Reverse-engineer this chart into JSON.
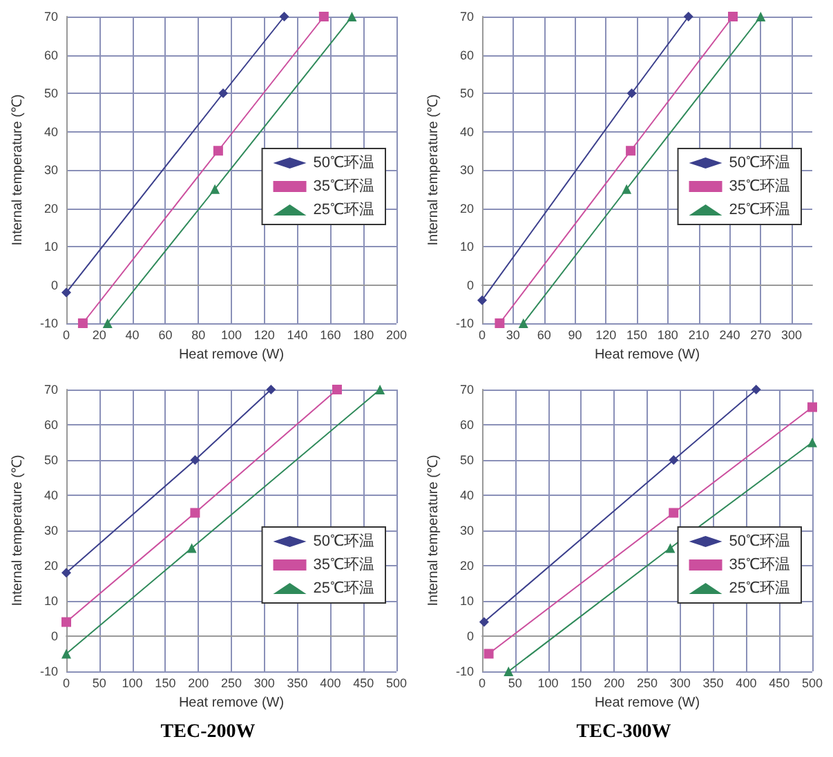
{
  "chart_data": [
    {
      "type": "line",
      "xlabel": "Heat remove (W)",
      "ylabel": "Internal temperature (℃)",
      "xlim": [
        0,
        200
      ],
      "xticks": [
        0,
        20,
        40,
        60,
        80,
        100,
        120,
        140,
        160,
        180,
        200
      ],
      "ylim": [
        -10,
        70
      ],
      "yticks": [
        -10,
        0,
        10,
        20,
        30,
        40,
        50,
        60,
        70
      ],
      "grid": true,
      "legend": "right",
      "series": [
        {
          "name": "50℃环温",
          "color": "#3b3f8c",
          "marker": "diamond",
          "x": [
            0,
            95,
            132
          ],
          "values": [
            -2,
            50,
            70
          ]
        },
        {
          "name": "35℃环温",
          "color": "#cc4f9e",
          "marker": "square",
          "x": [
            10,
            92,
            156
          ],
          "values": [
            -10,
            35,
            70
          ]
        },
        {
          "name": "25℃环温",
          "color": "#2f8a5a",
          "marker": "triangle",
          "x": [
            25,
            90,
            173
          ],
          "values": [
            -10,
            25,
            70
          ]
        }
      ]
    },
    {
      "type": "line",
      "xlabel": "Heat remove (W)",
      "ylabel": "Internal temperature (℃)",
      "xlim": [
        0,
        320
      ],
      "xticks": [
        0,
        30,
        60,
        90,
        120,
        150,
        180,
        210,
        240,
        270,
        300
      ],
      "ylim": [
        -10,
        70
      ],
      "yticks": [
        -10,
        0,
        10,
        20,
        30,
        40,
        50,
        60,
        70
      ],
      "grid": true,
      "legend": "right",
      "series": [
        {
          "name": "50℃环温",
          "color": "#3b3f8c",
          "marker": "diamond",
          "x": [
            0,
            145,
            200
          ],
          "values": [
            -4,
            50,
            70
          ]
        },
        {
          "name": "35℃环温",
          "color": "#cc4f9e",
          "marker": "square",
          "x": [
            17,
            144,
            243
          ],
          "values": [
            -10,
            35,
            70
          ]
        },
        {
          "name": "25℃环温",
          "color": "#2f8a5a",
          "marker": "triangle",
          "x": [
            40,
            140,
            270
          ],
          "values": [
            -10,
            25,
            70
          ]
        }
      ]
    },
    {
      "type": "line",
      "title": "TEC-200W",
      "xlabel": "Heat remove (W)",
      "ylabel": "Internal temperature (℃)",
      "xlim": [
        0,
        500
      ],
      "xticks": [
        0,
        50,
        100,
        150,
        200,
        250,
        300,
        350,
        400,
        450,
        500
      ],
      "ylim": [
        -10,
        70
      ],
      "yticks": [
        -10,
        0,
        10,
        20,
        30,
        40,
        50,
        60,
        70
      ],
      "grid": true,
      "legend": "right",
      "series": [
        {
          "name": "50℃环温",
          "color": "#3b3f8c",
          "marker": "diamond",
          "x": [
            0,
            195,
            310
          ],
          "values": [
            18,
            50,
            70
          ]
        },
        {
          "name": "35℃环温",
          "color": "#cc4f9e",
          "marker": "square",
          "x": [
            0,
            195,
            410
          ],
          "values": [
            4,
            35,
            70
          ]
        },
        {
          "name": "25℃环温",
          "color": "#2f8a5a",
          "marker": "triangle",
          "x": [
            0,
            190,
            475
          ],
          "values": [
            -5,
            25,
            70
          ]
        }
      ]
    },
    {
      "type": "line",
      "title": "TEC-300W",
      "xlabel": "Heat remove (W)",
      "ylabel": "Internal temperature (℃)",
      "xlim": [
        0,
        500
      ],
      "xticks": [
        0,
        50,
        100,
        150,
        200,
        250,
        300,
        350,
        400,
        450,
        500
      ],
      "ylim": [
        -10,
        70
      ],
      "yticks": [
        -10,
        0,
        10,
        20,
        30,
        40,
        50,
        60,
        70
      ],
      "grid": true,
      "legend": "right",
      "series": [
        {
          "name": "50℃环温",
          "color": "#3b3f8c",
          "marker": "diamond",
          "x": [
            3,
            290,
            415
          ],
          "values": [
            4,
            50,
            70
          ]
        },
        {
          "name": "35℃环温",
          "color": "#cc4f9e",
          "marker": "square",
          "x": [
            10,
            290,
            500
          ],
          "values": [
            -5,
            35,
            65
          ]
        },
        {
          "name": "25℃环温",
          "color": "#2f8a5a",
          "marker": "triangle",
          "x": [
            40,
            285,
            500
          ],
          "values": [
            -10,
            25,
            55
          ]
        }
      ]
    }
  ]
}
